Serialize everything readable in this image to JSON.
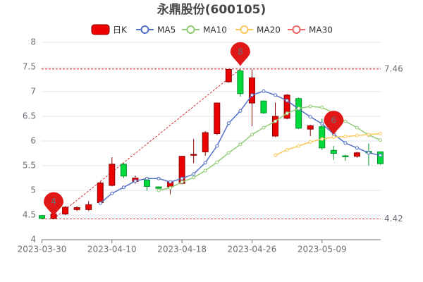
{
  "chart_data": {
    "type": "candlestick",
    "title": "永鼎股份(600105)",
    "categories": [
      "2023-03-30",
      null,
      null,
      null,
      null,
      null,
      "2023-04-10",
      null,
      null,
      null,
      null,
      null,
      "2023-04-18",
      null,
      null,
      null,
      null,
      null,
      "2023-04-26",
      null,
      null,
      null,
      null,
      null,
      "2023-05-09",
      null,
      null,
      null,
      null,
      null
    ],
    "candle": {
      "name": "日K",
      "up_color": "#ec0000",
      "up_border": "#8a0000",
      "down_color": "#00da3c",
      "down_border": "#008f28",
      "open": [
        4.49,
        4.43,
        4.52,
        4.61,
        4.61,
        4.75,
        5.1,
        5.53,
        5.18,
        5.21,
        5.07,
        5.07,
        5.14,
        5.71,
        5.78,
        6.15,
        7.2,
        7.42,
        6.77,
        6.81,
        6.1,
        6.46,
        6.86,
        6.24,
        6.29,
        5.81,
        5.7,
        5.69,
        5.79,
        5.78
      ],
      "close": [
        4.43,
        4.52,
        4.66,
        4.65,
        4.71,
        5.15,
        5.53,
        5.29,
        5.25,
        5.08,
        5.04,
        5.17,
        5.69,
        5.73,
        6.17,
        6.77,
        7.45,
        6.96,
        7.28,
        6.57,
        6.5,
        6.93,
        6.26,
        6.31,
        5.86,
        5.75,
        5.68,
        5.76,
        5.76,
        5.54
      ],
      "low": [
        4.42,
        4.42,
        4.5,
        4.58,
        4.58,
        4.72,
        5.08,
        5.25,
        5.13,
        4.99,
        5.0,
        4.92,
        5.12,
        5.55,
        5.7,
        6.12,
        7.18,
        6.9,
        6.3,
        6.55,
        6.08,
        6.44,
        6.24,
        6.1,
        5.82,
        5.62,
        5.6,
        5.66,
        5.5,
        5.52
      ],
      "high": [
        4.5,
        4.55,
        4.68,
        4.68,
        4.78,
        5.18,
        5.67,
        5.55,
        5.3,
        5.23,
        5.08,
        5.2,
        5.7,
        6.04,
        6.2,
        6.78,
        7.45,
        7.46,
        7.45,
        6.82,
        6.78,
        6.95,
        6.88,
        6.33,
        6.45,
        5.9,
        5.72,
        5.78,
        5.95,
        5.79
      ]
    },
    "series": [
      {
        "name": "MA5",
        "color": "#5470c6",
        "values": [
          null,
          null,
          null,
          null,
          null,
          4.74,
          4.94,
          5.06,
          5.19,
          5.24,
          5.24,
          5.17,
          5.24,
          5.33,
          5.56,
          5.9,
          6.36,
          6.61,
          6.93,
          7.01,
          6.93,
          6.82,
          6.65,
          6.49,
          6.35,
          6.14,
          5.96,
          5.86,
          5.76,
          5.71
        ]
      },
      {
        "name": "MA10",
        "color": "#91cc75",
        "values": [
          null,
          null,
          null,
          null,
          null,
          null,
          null,
          null,
          null,
          null,
          5.0,
          5.05,
          5.17,
          5.26,
          5.4,
          5.57,
          5.76,
          5.93,
          6.13,
          6.27,
          6.4,
          6.56,
          6.66,
          6.7,
          6.68,
          6.57,
          6.4,
          6.27,
          6.12,
          6.02
        ]
      },
      {
        "name": "MA20",
        "color": "#fac858",
        "values": [
          null,
          null,
          null,
          null,
          null,
          null,
          null,
          null,
          null,
          null,
          null,
          null,
          null,
          null,
          null,
          null,
          null,
          null,
          null,
          null,
          5.71,
          5.82,
          5.9,
          5.98,
          6.04,
          6.08,
          6.09,
          6.11,
          6.13,
          6.15
        ]
      },
      {
        "name": "MA30",
        "color": "#ee6666",
        "values": [
          null,
          null,
          null,
          null,
          null,
          null,
          null,
          null,
          null,
          null,
          null,
          null,
          null,
          null,
          null,
          null,
          null,
          null,
          null,
          null,
          null,
          null,
          null,
          null,
          null,
          null,
          null,
          null,
          null,
          null
        ]
      }
    ],
    "mark_lines": [
      7.46,
      4.42
    ],
    "markpoints": [
      {
        "index": 1,
        "value": 4.42,
        "label": "4"
      },
      {
        "index": 17,
        "value": 7.46,
        "label": "8"
      },
      {
        "index": 25,
        "value": 6.07,
        "label": "6"
      }
    ],
    "pin_color": "#e01818",
    "ylim": [
      4,
      8
    ],
    "yticks": [
      4,
      4.5,
      5,
      5.5,
      6,
      6.5,
      7,
      7.5,
      8
    ],
    "grid": true
  }
}
